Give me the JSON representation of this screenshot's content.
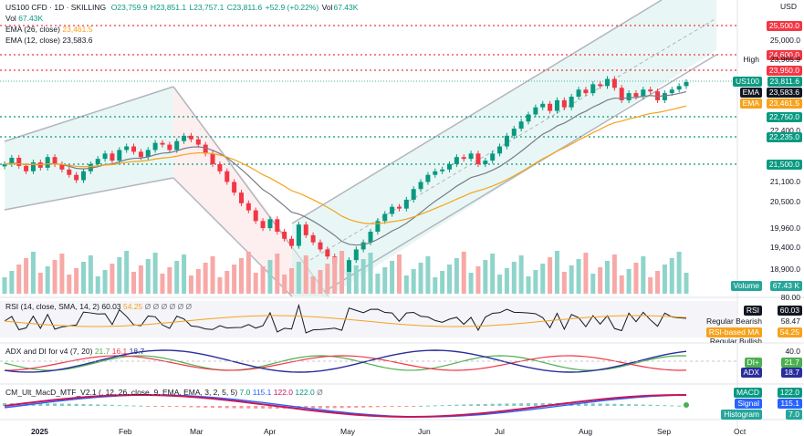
{
  "header": {
    "symbol": "US100 CFD · 1D · SKILLING",
    "open": "O23,759.9",
    "high": "H23,851.1",
    "low": "L23,757.1",
    "close": "C23,811.6",
    "change": "+52.9 (+0.22%)",
    "vol_label": "Vol",
    "vol_value": "67.43K",
    "vol_line": "Vol",
    "vol_line_value": "67.43K",
    "ema26": "EMA (26, close)",
    "ema26_value": "23,461.5",
    "ema12": "EMA (12, close)",
    "ema12_value": "23,583.6"
  },
  "price_axis": {
    "currency": "USD",
    "ticks": [
      "25,000.0",
      "24,000.0",
      "22,400.0",
      "21,100.0",
      "20,500.0",
      "19,960.0",
      "19,400.0",
      "18,900.0"
    ],
    "levels": [
      {
        "label": "25,500.0",
        "color": "#f23645"
      },
      {
        "label": "24,600.0",
        "color": "#f23645"
      },
      {
        "label": "23,950.0",
        "color": "#f23645"
      },
      {
        "label": "22,750.0",
        "color": "#089981"
      },
      {
        "label": "22,235.0",
        "color": "#089981"
      },
      {
        "label": "21,500.0",
        "color": "#089981"
      }
    ],
    "high_tag": "High",
    "high_value": "23,965.9",
    "last_tag": "US100",
    "last_value": "23,811.6",
    "ema12_tag": "EMA",
    "ema12_value": "23,583.6",
    "ema26_tag": "EMA",
    "ema26_value": "23,461.5",
    "volume_tag": "Volume",
    "volume_value": "67.43 K"
  },
  "rsi_panel": {
    "title": "RSI (14, close, SMA, 14, 2)",
    "value": "60.03",
    "ma_value": "54.25",
    "dots": "Ø Ø Ø   Ø Ø Ø",
    "axis_top": "80.00",
    "rsi_tag": "RSI",
    "rsi_value": "60.03",
    "bearish_label": "Regular Bearish",
    "bearish_value": "58.47",
    "ma_tag": "RSI-based MA",
    "ma_value_tag": "54.25",
    "cut_label": "Regular Bullish"
  },
  "adx_panel": {
    "title": "ADX and DI for v4 (7, 20)",
    "di_plus": "21.7",
    "di_minus": "16.1",
    "adx": "18.7",
    "axis_top": "40.0",
    "di_plus_tag": "DI+",
    "di_plus_value": "21.7",
    "adx_tag": "ADX",
    "adx_value": "18.7"
  },
  "macd_panel": {
    "title": "CM_Ult_MacD_MTF_V2.1 (, 12, 26, close, 9, EMA, EMA, 3, 2, 5, 5)",
    "v1": "7.0",
    "v2": "115.1",
    "v3": "122.0",
    "v4": "122.0",
    "v5": "Ø",
    "macd_tag": "MACD",
    "macd_value": "122.0",
    "signal_tag": "Signal",
    "signal_value": "115.1",
    "hist_tag": "Histogram",
    "hist_value": "7.0"
  },
  "time_axis": [
    "2025",
    "Feb",
    "Mar",
    "Apr",
    "May",
    "Jun",
    "Jul",
    "Aug",
    "Sep",
    "Oct"
  ],
  "colors": {
    "up": "#089981",
    "down": "#f23645",
    "ema12": "#787b86",
    "ema26": "#f7a21b",
    "channel": "#d9f2ee",
    "rsi": "#131722",
    "rsi_ma": "#f7a21b",
    "di_plus": "#4caf50",
    "di_minus": "#f23645",
    "adx": "#2a2e9b",
    "macd": "#c2185b",
    "signal": "#2962ff"
  },
  "chart_data": {
    "type": "candlestick",
    "series_close": [
      21500,
      21680,
      21450,
      21300,
      21550,
      21400,
      21700,
      21500,
      21350,
      21200,
      21050,
      21300,
      21500,
      21650,
      21800,
      21600,
      21900,
      22000,
      21850,
      21700,
      21900,
      22100,
      22050,
      21900,
      22150,
      22300,
      22200,
      22050,
      21800,
      21500,
      21300,
      21000,
      20700,
      20400,
      20200,
      19900,
      19700,
      19950,
      19600,
      19400,
      19200,
      19800,
      19500,
      19300,
      19100,
      18900,
      18700,
      18400,
      18800,
      19100,
      19300,
      19600,
      19900,
      20100,
      20300,
      20250,
      20500,
      20800,
      21000,
      21200,
      21300,
      21350,
      21500,
      21700,
      21650,
      21800,
      21500,
      21600,
      21800,
      22000,
      22300,
      22500,
      22700,
      22900,
      23100,
      23200,
      23000,
      23300,
      23100,
      23400,
      23600,
      23500,
      23750,
      23700,
      23900,
      23650,
      23300,
      23500,
      23400,
      23600,
      23550,
      23300,
      23500,
      23600,
      23700,
      23811.6
    ],
    "x_labels": [
      "2025",
      "Feb",
      "Mar",
      "Apr",
      "May",
      "Jun",
      "Jul",
      "Aug",
      "Sep",
      "Oct"
    ],
    "y_ticks": [
      25000,
      24000,
      22400,
      21100,
      20500,
      19960,
      19400,
      18900
    ],
    "last_close": 23811.6
  }
}
